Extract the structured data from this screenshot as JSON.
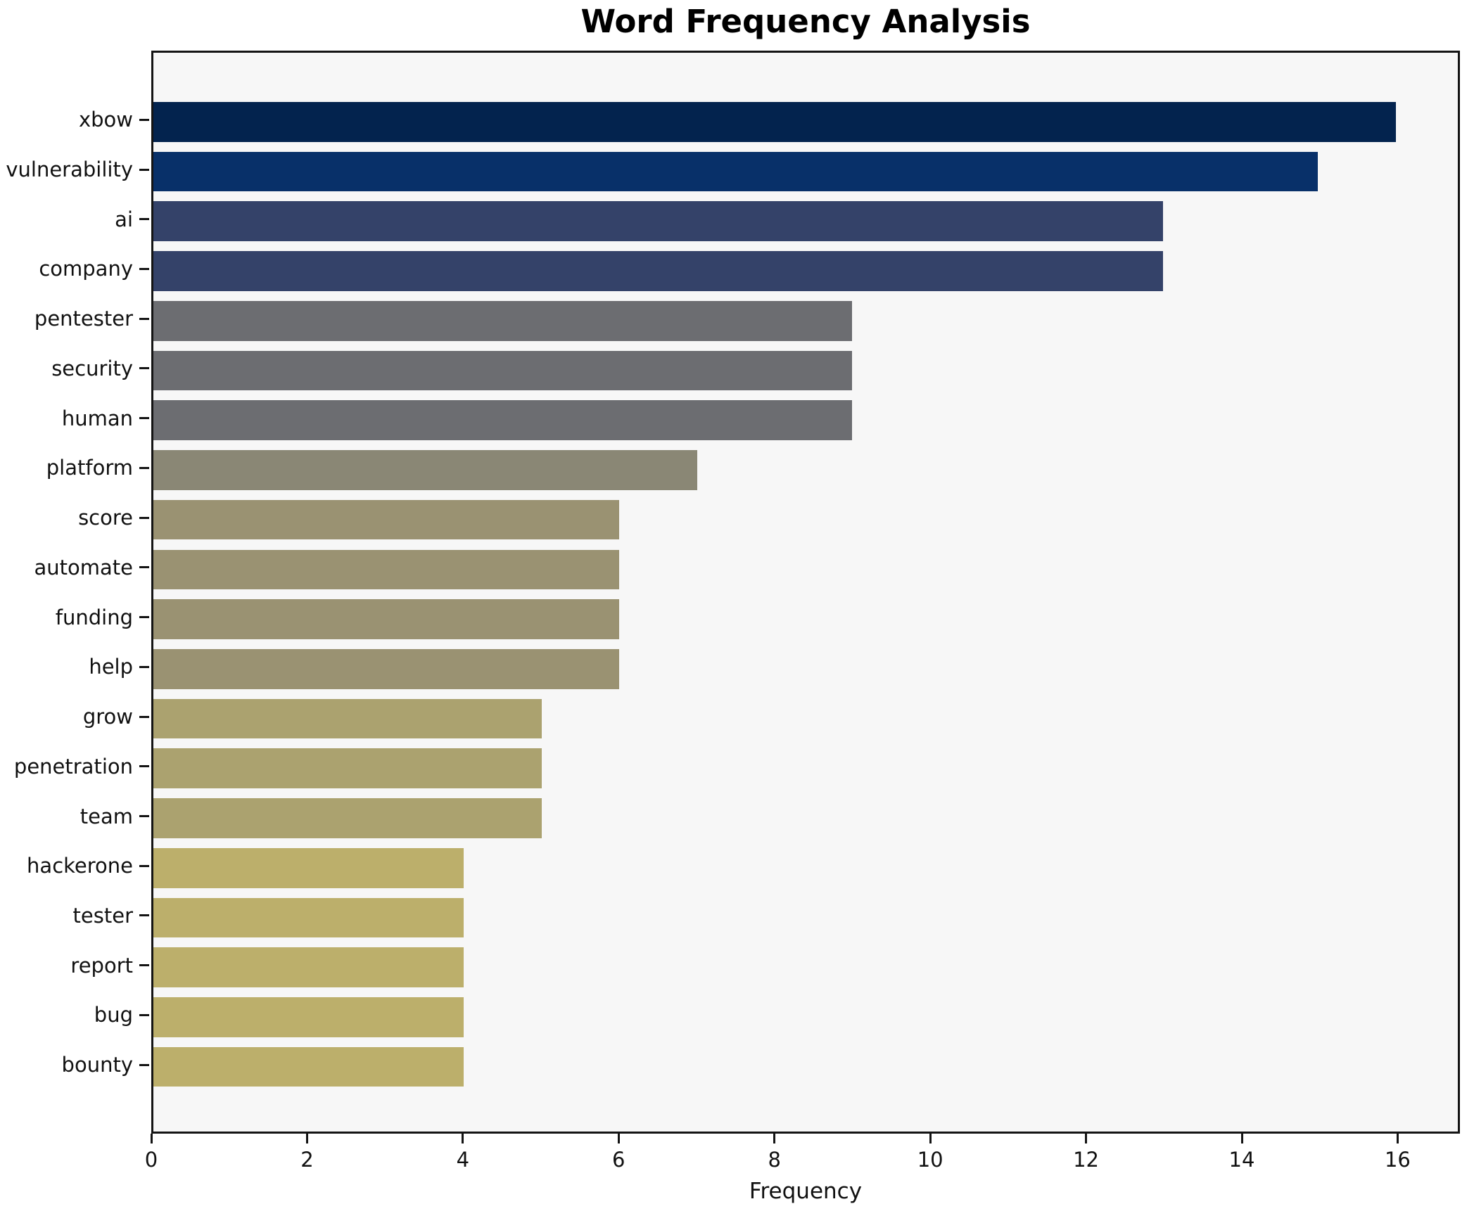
{
  "figure": {
    "background": "#ffffff",
    "plot_background": "#f7f7f7",
    "spine_color": "#141414",
    "text_color": "#111111"
  },
  "chart_data": {
    "type": "bar",
    "orientation": "horizontal",
    "title": "Word Frequency Analysis",
    "xlabel": "Frequency",
    "ylabel": "",
    "categories": [
      "xbow",
      "vulnerability",
      "ai",
      "company",
      "pentester",
      "security",
      "human",
      "platform",
      "score",
      "automate",
      "funding",
      "help",
      "grow",
      "penetration",
      "team",
      "hackerone",
      "tester",
      "report",
      "bug",
      "bounty"
    ],
    "values": [
      16,
      15,
      13,
      13,
      9,
      9,
      9,
      7,
      6,
      6,
      6,
      6,
      5,
      5,
      5,
      4,
      4,
      4,
      4,
      4
    ],
    "bar_colors": [
      "#03234e",
      "#083069",
      "#344269",
      "#344269",
      "#6c6d71",
      "#6c6d71",
      "#6c6d71",
      "#8a8775",
      "#9a9272",
      "#9a9272",
      "#9a9272",
      "#9a9272",
      "#aba26f",
      "#aba26f",
      "#aba26f",
      "#bcaf6b",
      "#bcaf6b",
      "#bcaf6b",
      "#bcaf6b",
      "#bcaf6b"
    ],
    "xlim": [
      0,
      16.8
    ],
    "x_ticks": [
      0,
      2,
      4,
      6,
      8,
      10,
      12,
      14,
      16
    ],
    "grid": false,
    "legend": null
  }
}
